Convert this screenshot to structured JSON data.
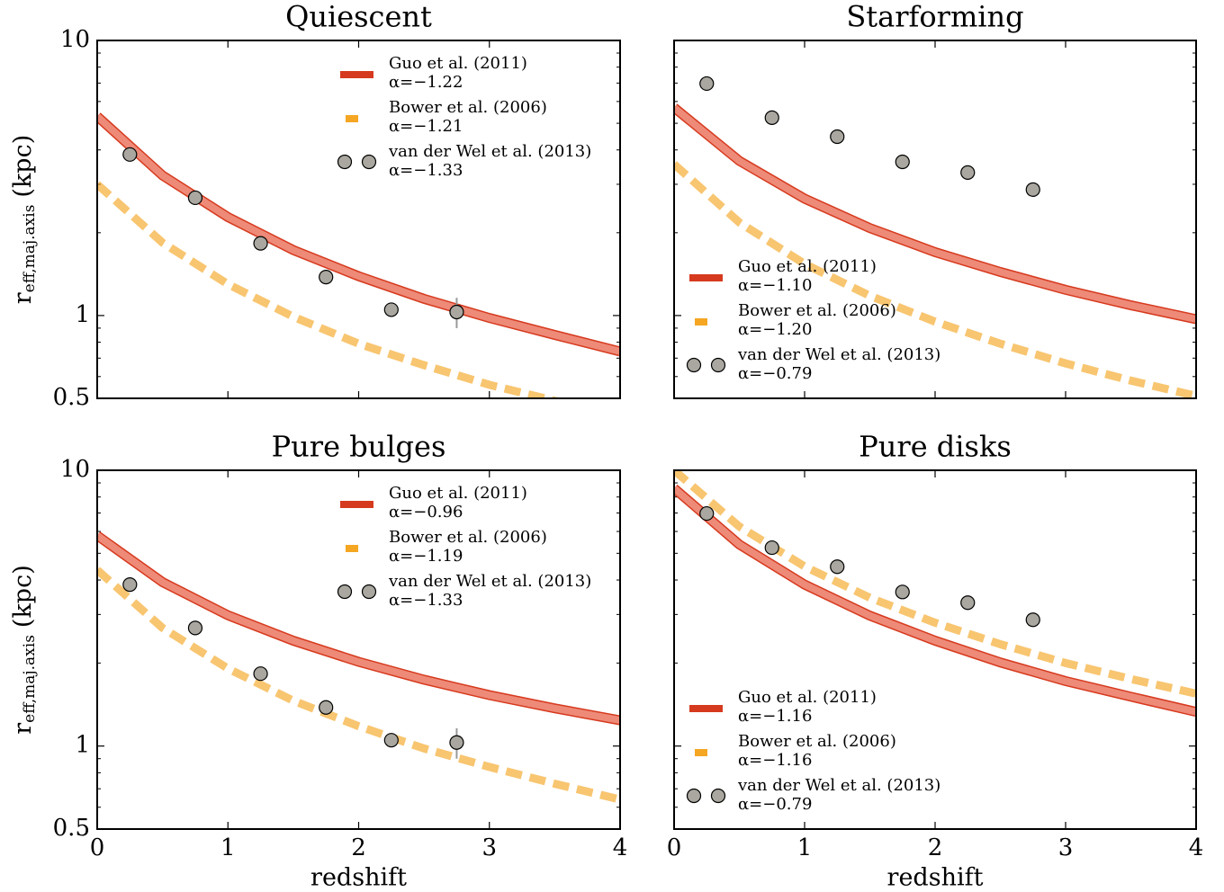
{
  "chart_data": [
    {
      "type": "line",
      "title": "Quiescent",
      "ylabel": [
        "r",
        "eff,maj.axis",
        "(kpc)"
      ],
      "xlim": [
        0,
        4
      ],
      "ylim": [
        0.5,
        10
      ],
      "xticks": [
        0,
        1,
        2,
        3,
        4
      ],
      "yticks": [
        0.5,
        1,
        10
      ],
      "yticks_minor": [
        0.6,
        0.7,
        0.8,
        0.9,
        2,
        3,
        4,
        5,
        6,
        7,
        8,
        9
      ],
      "log_y": true,
      "xtick_labels": false,
      "legend_loc": "upper right",
      "series": [
        {
          "name": "Guo et al. (2011)",
          "label": "α=−1.22",
          "color": "#d63a1e",
          "style": "solid",
          "x": [
            0,
            0.5,
            1,
            1.5,
            2,
            2.5,
            3,
            3.5,
            4
          ],
          "values": [
            5.3,
            3.23,
            2.28,
            1.73,
            1.39,
            1.15,
            0.98,
            0.85,
            0.74
          ]
        },
        {
          "name": "Bower et al. (2006)",
          "label": "α=−1.21",
          "color": "#f5a623",
          "style": "dashed",
          "x": [
            0,
            0.5,
            1,
            1.5,
            2,
            2.5,
            3,
            3.5,
            4
          ],
          "values": [
            3.0,
            1.84,
            1.3,
            0.99,
            0.79,
            0.66,
            0.56,
            0.49,
            0.43
          ]
        },
        {
          "name": "van der Wel et al. (2013)",
          "label": "α=−1.33",
          "color": "#a9a79f",
          "style": "scatter",
          "x": [
            0.25,
            0.75,
            1.25,
            1.75,
            2.25,
            2.75
          ],
          "values": [
            3.85,
            2.68,
            1.83,
            1.38,
            1.05,
            1.03
          ],
          "errors": [
            0.1,
            0.08,
            0.06,
            0.05,
            0.06,
            0.13
          ]
        }
      ]
    },
    {
      "type": "line",
      "title": "Starforming",
      "xlim": [
        0,
        4
      ],
      "ylim": [
        0.5,
        10
      ],
      "xticks": [
        0,
        1,
        2,
        3,
        4
      ],
      "yticks": [
        0.5,
        1,
        10
      ],
      "yticks_minor": [
        0.6,
        0.7,
        0.8,
        0.9,
        2,
        3,
        4,
        5,
        6,
        7,
        8,
        9
      ],
      "log_y": true,
      "xtick_labels": false,
      "ytick_labels": false,
      "legend_loc": "lower left",
      "series": [
        {
          "name": "Guo et al. (2011)",
          "label": "α=−1.10",
          "color": "#d63a1e",
          "style": "solid",
          "x": [
            0,
            0.5,
            1,
            1.5,
            2,
            2.5,
            3,
            3.5,
            4
          ],
          "values": [
            5.7,
            3.65,
            2.66,
            2.08,
            1.7,
            1.44,
            1.24,
            1.09,
            0.97
          ]
        },
        {
          "name": "Bower et al. (2006)",
          "label": "α=−1.20",
          "color": "#f5a623",
          "style": "dashed",
          "x": [
            0,
            0.5,
            1,
            1.5,
            2,
            2.5,
            3,
            3.5,
            4
          ],
          "values": [
            3.55,
            2.18,
            1.54,
            1.18,
            0.95,
            0.79,
            0.67,
            0.58,
            0.51
          ]
        },
        {
          "name": "van der Wel et al. (2013)",
          "label": "α=−0.79",
          "color": "#a9a79f",
          "style": "scatter",
          "x": [
            0.25,
            0.75,
            1.25,
            1.75,
            2.25,
            2.75
          ],
          "values": [
            6.97,
            5.24,
            4.47,
            3.62,
            3.31,
            2.87
          ],
          "errors": [
            0.1,
            0.1,
            0.1,
            0.1,
            0.1,
            0.1
          ]
        }
      ]
    },
    {
      "type": "line",
      "title": "Pure bulges",
      "ylabel": [
        "r",
        "eff,maj.axis",
        "(kpc)"
      ],
      "xlabel": "redshift",
      "xlim": [
        0,
        4
      ],
      "ylim": [
        0.5,
        10
      ],
      "xticks": [
        0,
        1,
        2,
        3,
        4
      ],
      "yticks": [
        0.5,
        1,
        10
      ],
      "yticks_minor": [
        0.6,
        0.7,
        0.8,
        0.9,
        2,
        3,
        4,
        5,
        6,
        7,
        8,
        9
      ],
      "log_y": true,
      "xtick_labels": true,
      "legend_loc": "upper right",
      "series": [
        {
          "name": "Guo et al. (2011)",
          "label": "α=−0.96",
          "color": "#d63a1e",
          "style": "solid",
          "x": [
            0,
            0.5,
            1,
            1.5,
            2,
            2.5,
            3,
            3.5,
            4
          ],
          "values": [
            5.8,
            3.93,
            2.98,
            2.41,
            2.02,
            1.74,
            1.53,
            1.37,
            1.24
          ]
        },
        {
          "name": "Bower et al. (2006)",
          "label": "α=−1.19",
          "color": "#f5a623",
          "style": "dashed",
          "x": [
            0,
            0.5,
            1,
            1.5,
            2,
            2.5,
            3,
            3.5,
            4
          ],
          "values": [
            4.35,
            2.68,
            1.91,
            1.46,
            1.18,
            0.98,
            0.84,
            0.73,
            0.64
          ]
        },
        {
          "name": "van der Wel et al. (2013)",
          "label": "α=−1.33",
          "color": "#a9a79f",
          "style": "scatter",
          "x": [
            0.25,
            0.75,
            1.25,
            1.75,
            2.25,
            2.75
          ],
          "values": [
            3.85,
            2.68,
            1.83,
            1.38,
            1.05,
            1.03
          ],
          "errors": [
            0.1,
            0.08,
            0.06,
            0.05,
            0.06,
            0.13
          ]
        }
      ]
    },
    {
      "type": "line",
      "title": "Pure disks",
      "xlabel": "redshift",
      "xlim": [
        0,
        4
      ],
      "ylim": [
        0.5,
        10
      ],
      "xticks": [
        0,
        1,
        2,
        3,
        4
      ],
      "yticks": [
        0.5,
        1,
        10
      ],
      "yticks_minor": [
        0.6,
        0.7,
        0.8,
        0.9,
        2,
        3,
        4,
        5,
        6,
        7,
        8,
        9
      ],
      "log_y": true,
      "xtick_labels": true,
      "ytick_labels": false,
      "legend_loc": "lower left",
      "series": [
        {
          "name": "Guo et al. (2011)",
          "label": "α=−1.16",
          "color": "#d63a1e",
          "style": "solid",
          "x": [
            0,
            0.5,
            1,
            1.5,
            2,
            2.5,
            3,
            3.5,
            4
          ],
          "values": [
            8.6,
            5.38,
            3.85,
            2.97,
            2.41,
            2.01,
            1.72,
            1.51,
            1.33
          ]
        },
        {
          "name": "Bower et al. (2006)",
          "label": "α=−1.16",
          "color": "#f5a623",
          "style": "dashed",
          "x": [
            0,
            0.5,
            1,
            1.5,
            2,
            2.5,
            3,
            3.5,
            4
          ],
          "values": [
            10,
            6.25,
            4.48,
            3.45,
            2.8,
            2.34,
            2.0,
            1.75,
            1.55
          ]
        },
        {
          "name": "van der Wel et al. (2013)",
          "label": "α=−0.79",
          "color": "#a9a79f",
          "style": "scatter",
          "x": [
            0.25,
            0.75,
            1.25,
            1.75,
            2.25,
            2.75
          ],
          "values": [
            6.97,
            5.24,
            4.47,
            3.62,
            3.31,
            2.87
          ],
          "errors": [
            0.1,
            0.1,
            0.1,
            0.1,
            0.1,
            0.1
          ]
        }
      ]
    }
  ]
}
